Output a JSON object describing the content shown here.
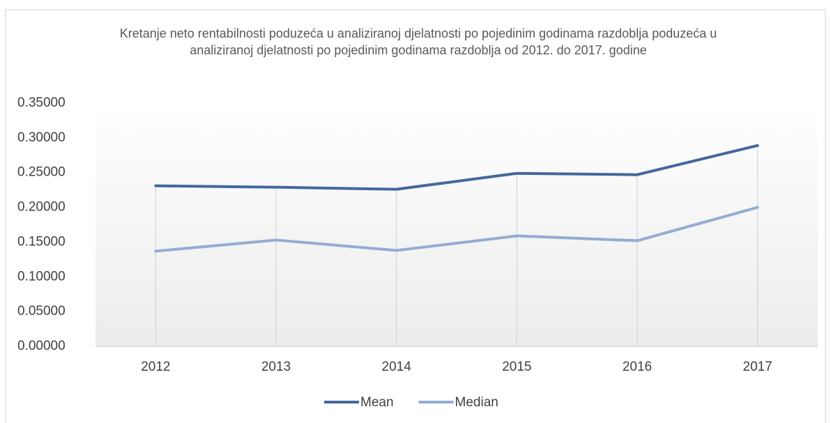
{
  "chart_data": {
    "type": "line",
    "title": "Kretanje  neto rentabilnosti  poduzeća u analiziranoj  djelatnosti  po pojedinim godinama razdoblja  poduzeća u analiziranoj  djelatnosti  po pojedinim godinama razdoblja  od 2012. do 2017. godine",
    "categories": [
      "2012",
      "2013",
      "2014",
      "2015",
      "2016",
      "2017"
    ],
    "series": [
      {
        "name": "Mean",
        "color": "#44689d",
        "values": [
          0.231,
          0.229,
          0.226,
          0.249,
          0.247,
          0.289
        ]
      },
      {
        "name": "Median",
        "color": "#93acd4",
        "values": [
          0.137,
          0.153,
          0.138,
          0.159,
          0.152,
          0.2
        ]
      }
    ],
    "ylim": [
      0,
      0.35
    ],
    "yticks": [
      {
        "value": 0,
        "label": "0.00000"
      },
      {
        "value": 0.05,
        "label": "0.05000"
      },
      {
        "value": 0.1,
        "label": "0.10000"
      },
      {
        "value": 0.15,
        "label": "0.15000"
      },
      {
        "value": 0.2,
        "label": "0.20000"
      },
      {
        "value": 0.25,
        "label": "0.25000"
      },
      {
        "value": 0.3,
        "label": "0.30000"
      },
      {
        "value": 0.35,
        "label": "0.35000"
      }
    ],
    "legend": "bottom"
  }
}
